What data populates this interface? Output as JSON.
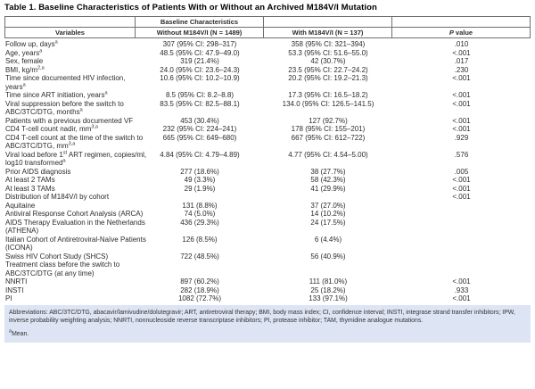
{
  "title": "Table 1. Baseline Characteristics of Patients With or Without an Archived M184V/I Mutation",
  "header": {
    "group_label": "Baseline Characteristics",
    "variables_label": "Variables",
    "without_label": "Without M184V/I (N = 1489)",
    "with_label": "With M184V/I (N = 137)",
    "p_label_italic": "P",
    "p_label_rest": "value"
  },
  "table": {
    "rows": [
      {
        "label": "Follow up, days^{a}",
        "without_col": "307 (95% CI: 298–317)",
        "with_col": "358 (95% CI: 321–394)",
        "p": ".010"
      },
      {
        "label": "Age, years^{a}",
        "without_col": "48.5 (95% CI: 47.9–49.0)",
        "with_col": "53.3 (95% CI: 51.6–55.0)",
        "p": "<.001"
      },
      {
        "label": "Sex, female",
        "without_col": "319 (21.4%)",
        "with_col": "42 (30.7%)",
        "p": ".017"
      },
      {
        "label": "BMI, kg/m^{2,a}",
        "without_col": "24.0 (95% CI: 23.6–24.3)",
        "with_col": "23.5 (95% CI: 22.7–24.2)",
        "p": ".230"
      },
      {
        "label": "Time since documented HIV infection,\nyears^{a}",
        "without_col": "10.6 (95% CI: 10.2–10.9)",
        "with_col": "20.2 (95% CI: 19.2–21.3)",
        "p": "<.001"
      },
      {
        "label": "Time since ART initiation, years^{a}",
        "without_col": "8.5 (95% CI: 8.2–8.8)",
        "with_col": "17.3 (95% CI: 16.5–18.2)",
        "p": "<.001"
      },
      {
        "label": "Viral suppression before the switch to\nABC/3TC/DTG, months^{a}",
        "without_col": "83.5 (95% CI: 82.5–88.1)",
        "with_col": "134.0 (95% CI: 126.5–141.5)",
        "p": "<.001"
      },
      {
        "label": "Patients with a previous documented VF",
        "without_col": "453 (30.4%)",
        "with_col": "127 (92.7%)",
        "p": "<.001"
      },
      {
        "label": "CD4 T-cell count nadir, mm^{3,a}",
        "without_col": "232 (95% CI: 224–241)",
        "with_col": "178 (95% CI: 155–201)",
        "p": "<.001"
      },
      {
        "label": "CD4 T-cell count at the time of the switch to\nABC/3TC/DTG, mm^{3,a}",
        "without_col": "665 (95% CI: 649–680)",
        "with_col": "667 (95% CI: 612–722)",
        "p": ".929"
      },
      {
        "label": "Viral load before 1^{st} ART regimen, copies/ml,\nlog10 transformed^{a}",
        "without_col": "4.84 (95% CI: 4.79–4.89)",
        "with_col": "4.77 (95% CI: 4.54–5.00)",
        "p": ".576"
      },
      {
        "label": "Prior AIDS diagnosis",
        "without_col": "277 (18.6%)",
        "with_col": "38 (27.7%)",
        "p": ".005"
      },
      {
        "label": "At least 2 TAMs",
        "without_col": "49 (3.3%)",
        "with_col": "58 (42.3%)",
        "p": "<.001"
      },
      {
        "label": "At least 3 TAMs",
        "without_col": "29 (1.9%)",
        "with_col": "41 (29.9%)",
        "p": "<.001"
      },
      {
        "label": "Distribution of M184V/I by cohort",
        "without_col": "",
        "with_col": "",
        "p": "<.001"
      },
      {
        "label": "Aquitaine",
        "without_col": "131 (8.8%)",
        "with_col": "37 (27.0%)",
        "p": ""
      },
      {
        "label": "Antiviral Response Cohort Analysis (ARCA)",
        "without_col": "74 (5.0%)",
        "with_col": "14 (10.2%)",
        "p": ""
      },
      {
        "label": "AIDS Therapy Evaluation in the Netherlands\n(ATHENA)",
        "without_col": "436 (29.3%)",
        "with_col": "24 (17.5%)",
        "p": ""
      },
      {
        "label": "Italian Cohort of Antiretroviral-Naïve Patients\n(ICONA)",
        "without_col": "126 (8.5%)",
        "with_col": "6 (4.4%)",
        "p": ""
      },
      {
        "label": "Swiss HIV Cohort Study (SHCS)",
        "without_col": "722 (48.5%)",
        "with_col": "56 (40.9%)",
        "p": ""
      },
      {
        "label": "Treatment class before the switch to\nABC/3TC/DTG (at any time)",
        "without_col": "",
        "with_col": "",
        "p": ""
      },
      {
        "label": "NNRTI",
        "without_col": "897 (60.2%)",
        "with_col": "111 (81.0%)",
        "p": "<.001"
      },
      {
        "label": "INSTI",
        "without_col": "282 (18.9%)",
        "with_col": "25 (18.2%)",
        "p": ".933"
      },
      {
        "label": "PI",
        "without_col": "1082 (72.7%)",
        "with_col": "133 (97.1%)",
        "p": "<.001"
      }
    ]
  },
  "footnotes": {
    "abbreviations": "Abbreviations: ABC/3TC/DTG, abacavir/lamivudine/dolutegravir; ART, antiretroviral therapy; BMI, body mass index; CI, confidence interval; INSTI, integrase strand transfer inhibitors; IPW, inverse probability weighting analysis; NNRTI, nonnucleoside reverse transcriptase inhibitors; PI, protease inhibitor; TAM, thymidine analogue mutations.",
    "mean_note": "^{a}Mean.",
    "colors": {
      "footnote_background": "#dde4f4",
      "table_border": "#6f6f6f",
      "text": "#2b2b2b"
    }
  }
}
